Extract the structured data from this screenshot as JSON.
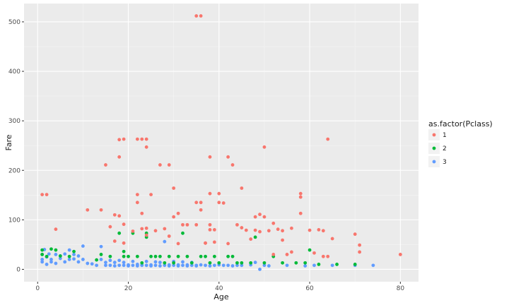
{
  "chart_data": {
    "type": "scatter",
    "xlabel": "Age",
    "ylabel": "Fare",
    "xlim": [
      -3,
      84
    ],
    "ylim": [
      -25,
      537
    ],
    "x_ticks": [
      0,
      20,
      40,
      60,
      80
    ],
    "y_ticks": [
      0,
      100,
      200,
      300,
      400,
      500
    ],
    "x_tick_labels": [
      "0",
      "20",
      "40",
      "60",
      "80"
    ],
    "y_tick_labels": [
      "0",
      "100",
      "200",
      "300",
      "400",
      "500"
    ],
    "grid": true,
    "legend": {
      "title": "as.factor(Pclass)",
      "position": "right",
      "entries": [
        "1",
        "2",
        "3"
      ]
    },
    "colors": {
      "1": "#F8766D",
      "2": "#00BA38",
      "3": "#619CFF"
    },
    "series": [
      {
        "name": "3",
        "points": [
          [
            1,
            15
          ],
          [
            1,
            20
          ],
          [
            1,
            30
          ],
          [
            1.5,
            40
          ],
          [
            2,
            10
          ],
          [
            2,
            25
          ],
          [
            2.5,
            31
          ],
          [
            3,
            15
          ],
          [
            3,
            20
          ],
          [
            4,
            12
          ],
          [
            4,
            30
          ],
          [
            5,
            22
          ],
          [
            5,
            27
          ],
          [
            6,
            15
          ],
          [
            6,
            31
          ],
          [
            7,
            20
          ],
          [
            7,
            39
          ],
          [
            8,
            21
          ],
          [
            8,
            30
          ],
          [
            9,
            15
          ],
          [
            9,
            27
          ],
          [
            10,
            20
          ],
          [
            10,
            47
          ],
          [
            11,
            12
          ],
          [
            12,
            11
          ],
          [
            13,
            8
          ],
          [
            14,
            20
          ],
          [
            14,
            46
          ],
          [
            15,
            8
          ],
          [
            15,
            14
          ],
          [
            16,
            8
          ],
          [
            16,
            18
          ],
          [
            17,
            7
          ],
          [
            17,
            14
          ],
          [
            18,
            8
          ],
          [
            18,
            18
          ],
          [
            19,
            8
          ],
          [
            19,
            14
          ],
          [
            20,
            7
          ],
          [
            20,
            9
          ],
          [
            21,
            8
          ],
          [
            21,
            16
          ],
          [
            22,
            7
          ],
          [
            22,
            10
          ],
          [
            23,
            8
          ],
          [
            23,
            9
          ],
          [
            24,
            8
          ],
          [
            24,
            16
          ],
          [
            25,
            7
          ],
          [
            25,
            9
          ],
          [
            26,
            8
          ],
          [
            26,
            15
          ],
          [
            27,
            7
          ],
          [
            27,
            14
          ],
          [
            28,
            8
          ],
          [
            28,
            56
          ],
          [
            29,
            7
          ],
          [
            29,
            9
          ],
          [
            30,
            8
          ],
          [
            30,
            16
          ],
          [
            31,
            7
          ],
          [
            31,
            9
          ],
          [
            32,
            8
          ],
          [
            32,
            15
          ],
          [
            33,
            7
          ],
          [
            33,
            9
          ],
          [
            34,
            8
          ],
          [
            34,
            14
          ],
          [
            35,
            7
          ],
          [
            35,
            8
          ],
          [
            36,
            9
          ],
          [
            37,
            8
          ],
          [
            38,
            7
          ],
          [
            39,
            8
          ],
          [
            40,
            9
          ],
          [
            41,
            8
          ],
          [
            42,
            8
          ],
          [
            43,
            7
          ],
          [
            44,
            8
          ],
          [
            45,
            8
          ],
          [
            47,
            9
          ],
          [
            48,
            14
          ],
          [
            49,
            0
          ],
          [
            50,
            8
          ],
          [
            51,
            7
          ],
          [
            55,
            8
          ],
          [
            59,
            7
          ],
          [
            61,
            8
          ],
          [
            65,
            8
          ],
          [
            70,
            8
          ],
          [
            74,
            8
          ]
        ]
      },
      {
        "name": "2",
        "points": [
          [
            1,
            30
          ],
          [
            1,
            39
          ],
          [
            2,
            26
          ],
          [
            3,
            41
          ],
          [
            4,
            39
          ],
          [
            5,
            27
          ],
          [
            7,
            26
          ],
          [
            8,
            36
          ],
          [
            13,
            19
          ],
          [
            14,
            30
          ],
          [
            16,
            26
          ],
          [
            18,
            73
          ],
          [
            19,
            26
          ],
          [
            19,
            36
          ],
          [
            20,
            26
          ],
          [
            21,
            73
          ],
          [
            22,
            26
          ],
          [
            23,
            13
          ],
          [
            24,
            65
          ],
          [
            24,
            73
          ],
          [
            25,
            26
          ],
          [
            26,
            26
          ],
          [
            27,
            26
          ],
          [
            28,
            13
          ],
          [
            29,
            26
          ],
          [
            30,
            13
          ],
          [
            31,
            26
          ],
          [
            32,
            73
          ],
          [
            33,
            26
          ],
          [
            34,
            13
          ],
          [
            36,
            26
          ],
          [
            37,
            26
          ],
          [
            38,
            13
          ],
          [
            39,
            26
          ],
          [
            40,
            13
          ],
          [
            42,
            26
          ],
          [
            43,
            26
          ],
          [
            44,
            13
          ],
          [
            45,
            13
          ],
          [
            47,
            13
          ],
          [
            48,
            65
          ],
          [
            50,
            13
          ],
          [
            52,
            26
          ],
          [
            54,
            13
          ],
          [
            57,
            13
          ],
          [
            59,
            13
          ],
          [
            60,
            39
          ],
          [
            62,
            10
          ],
          [
            66,
            10
          ],
          [
            70,
            10
          ]
        ]
      },
      {
        "name": "1",
        "points": [
          [
            1,
            151
          ],
          [
            2,
            151
          ],
          [
            4,
            81
          ],
          [
            11,
            120
          ],
          [
            14,
            120
          ],
          [
            15,
            211
          ],
          [
            16,
            86
          ],
          [
            17,
            57
          ],
          [
            17,
            110
          ],
          [
            18,
            108
          ],
          [
            18,
            227
          ],
          [
            18,
            262
          ],
          [
            19,
            263
          ],
          [
            19,
            91
          ],
          [
            19,
            53
          ],
          [
            21,
            77
          ],
          [
            22,
            263
          ],
          [
            22,
            151
          ],
          [
            22,
            135
          ],
          [
            23,
            113
          ],
          [
            23,
            263
          ],
          [
            23,
            82
          ],
          [
            24,
            263
          ],
          [
            24,
            247
          ],
          [
            24,
            69
          ],
          [
            24,
            83
          ],
          [
            25,
            151
          ],
          [
            26,
            78
          ],
          [
            27,
            211
          ],
          [
            28,
            82
          ],
          [
            29,
            211
          ],
          [
            29,
            67
          ],
          [
            30,
            106
          ],
          [
            30,
            164
          ],
          [
            31,
            113
          ],
          [
            31,
            52
          ],
          [
            32,
            90
          ],
          [
            33,
            90
          ],
          [
            35,
            512
          ],
          [
            35,
            135
          ],
          [
            35,
            90
          ],
          [
            36,
            512
          ],
          [
            36,
            135
          ],
          [
            36,
            120
          ],
          [
            37,
            53
          ],
          [
            37,
            53
          ],
          [
            38,
            227
          ],
          [
            38,
            153
          ],
          [
            38,
            90
          ],
          [
            38,
            80
          ],
          [
            39,
            80
          ],
          [
            39,
            55
          ],
          [
            40,
            153
          ],
          [
            40,
            135
          ],
          [
            41,
            134
          ],
          [
            42,
            227
          ],
          [
            42,
            52
          ],
          [
            43,
            211
          ],
          [
            44,
            90
          ],
          [
            45,
            164
          ],
          [
            45,
            84
          ],
          [
            46,
            79
          ],
          [
            47,
            61
          ],
          [
            48,
            106
          ],
          [
            48,
            79
          ],
          [
            49,
            111
          ],
          [
            49,
            76
          ],
          [
            50,
            247
          ],
          [
            50,
            106
          ],
          [
            51,
            78
          ],
          [
            52,
            93
          ],
          [
            52,
            30
          ],
          [
            53,
            81
          ],
          [
            54,
            59
          ],
          [
            54,
            78
          ],
          [
            55,
            30
          ],
          [
            56,
            83
          ],
          [
            56,
            35
          ],
          [
            58,
            153
          ],
          [
            58,
            146
          ],
          [
            58,
            113
          ],
          [
            60,
            79
          ],
          [
            61,
            33
          ],
          [
            62,
            80
          ],
          [
            63,
            78
          ],
          [
            63,
            26
          ],
          [
            64,
            263
          ],
          [
            64,
            26
          ],
          [
            65,
            62
          ],
          [
            70,
            71
          ],
          [
            71,
            49
          ],
          [
            71,
            35
          ],
          [
            80,
            30
          ]
        ]
      }
    ]
  }
}
